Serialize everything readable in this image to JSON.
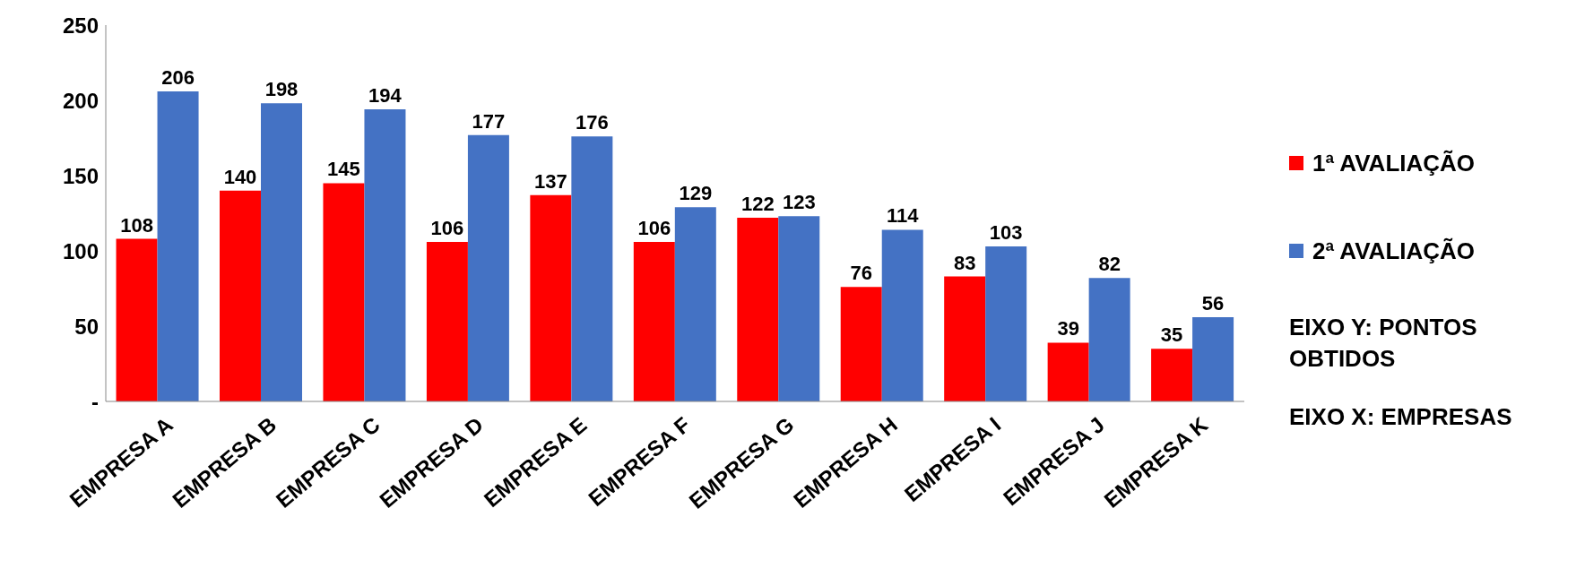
{
  "chart_data": {
    "type": "bar",
    "categories": [
      "EMPRESA A",
      "EMPRESA B",
      "EMPRESA C",
      "EMPRESA D",
      "EMPRESA E",
      "EMPRESA F",
      "EMPRESA G",
      "EMPRESA H",
      "EMPRESA I",
      "EMPRESA J",
      "EMPRESA K"
    ],
    "series": [
      {
        "name": "1ª AVALIAÇÃO",
        "color": "#ff0000",
        "values": [
          108,
          140,
          145,
          106,
          137,
          106,
          122,
          76,
          83,
          39,
          35
        ]
      },
      {
        "name": "2ª AVALIAÇÃO",
        "color": "#4472c4",
        "values": [
          206,
          198,
          194,
          177,
          176,
          129,
          123,
          114,
          103,
          82,
          56
        ]
      }
    ],
    "ylim": [
      0,
      250
    ],
    "yticks": [
      {
        "value": 0,
        "label": "-"
      },
      50,
      100,
      150,
      200,
      250
    ],
    "data_labels": true,
    "grid": false,
    "legend": "right",
    "annotations": [
      "EIXO Y: PONTOS OBTIDOS",
      "EIXO X: EMPRESAS"
    ]
  }
}
